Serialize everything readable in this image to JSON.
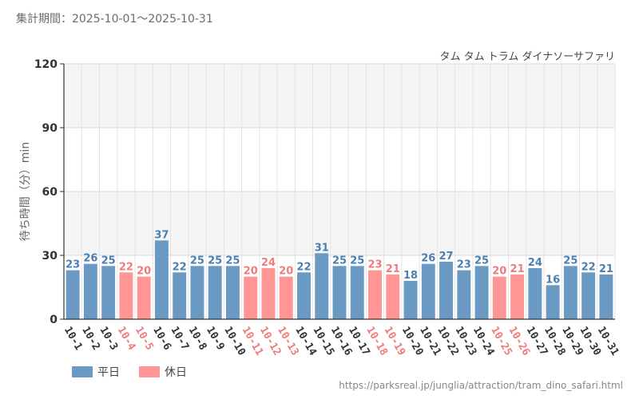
{
  "header": {
    "period": "集計期間：2025-10-01～2025-10-31",
    "attraction": "タム タム トラム ダイナソーサファリ"
  },
  "footer": {
    "source": "https://parksreal.jp/junglia/attraction/tram_dino_safari.html"
  },
  "colors": {
    "weekday": "#6a9ac4",
    "holiday": "#ff9595",
    "weekday_text": "#4a7fb0",
    "holiday_text": "#ef7b7b",
    "plot_band": "#f5f5f5",
    "grid": "#e4e4e4"
  },
  "chart_data": {
    "type": "bar",
    "title": "",
    "xlabel": "",
    "ylabel": "待ち時間（分）min",
    "ylim": [
      0,
      120
    ],
    "yticks": [
      0,
      30,
      60,
      90,
      120
    ],
    "categories": [
      "10-1",
      "10-2",
      "10-3",
      "10-4",
      "10-5",
      "10-6",
      "10-7",
      "10-8",
      "10-9",
      "10-10",
      "10-11",
      "10-12",
      "10-13",
      "10-14",
      "10-15",
      "10-16",
      "10-17",
      "10-18",
      "10-19",
      "10-20",
      "10-21",
      "10-22",
      "10-23",
      "10-24",
      "10-25",
      "10-26",
      "10-27",
      "10-28",
      "10-29",
      "10-30",
      "10-31"
    ],
    "values": [
      23,
      26,
      25,
      22,
      20,
      37,
      22,
      25,
      25,
      25,
      20,
      24,
      20,
      22,
      31,
      25,
      25,
      23,
      21,
      18,
      26,
      27,
      23,
      25,
      20,
      21,
      24,
      16,
      25,
      22,
      21
    ],
    "day_types": [
      "weekday",
      "weekday",
      "weekday",
      "holiday",
      "holiday",
      "weekday",
      "weekday",
      "weekday",
      "weekday",
      "weekday",
      "holiday",
      "holiday",
      "holiday",
      "weekday",
      "weekday",
      "weekday",
      "weekday",
      "holiday",
      "holiday",
      "weekday",
      "weekday",
      "weekday",
      "weekday",
      "weekday",
      "holiday",
      "holiday",
      "weekday",
      "weekday",
      "weekday",
      "weekday",
      "weekday"
    ],
    "legend": [
      {
        "key": "weekday",
        "label": "平日"
      },
      {
        "key": "holiday",
        "label": "休日"
      }
    ],
    "legend_position": "bottom-left",
    "grid": true
  }
}
